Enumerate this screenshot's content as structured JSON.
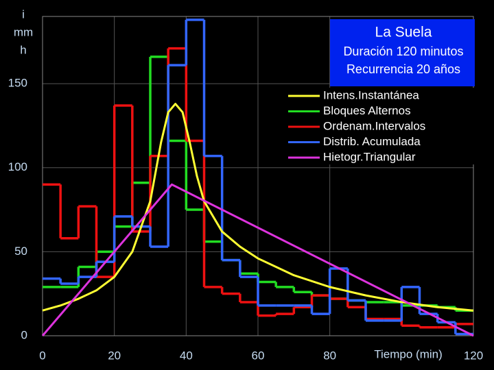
{
  "chart_data": {
    "type": "line",
    "title": "La Suela",
    "subtitle": [
      "Duración 120 minutos",
      "Recurrencia 20 años"
    ],
    "ylabel": [
      "i",
      "mm",
      "h"
    ],
    "xlabel": "Tiempo (min)",
    "xlim": [
      0,
      120
    ],
    "ylim": [
      0,
      190
    ],
    "xticks": [
      0,
      20,
      40,
      60,
      80,
      120
    ],
    "yticks": [
      0,
      50,
      100,
      150
    ],
    "grid": true,
    "legend": "upper right",
    "series": [
      {
        "name": "Intens.Instantánea",
        "color": "#ffff33",
        "x": [
          0,
          5,
          10,
          15,
          20,
          25,
          30,
          33,
          35,
          37,
          39,
          41,
          43,
          45,
          50,
          55,
          60,
          70,
          80,
          90,
          100,
          110,
          120
        ],
        "values": [
          15,
          18,
          22,
          27,
          35,
          50,
          80,
          115,
          133,
          138,
          133,
          115,
          95,
          80,
          62,
          53,
          46,
          36,
          29,
          24,
          20,
          17,
          15
        ]
      },
      {
        "name": "Bloques Alternos",
        "color": "#22dd22",
        "bins": [
          0,
          5,
          10,
          15,
          20,
          25,
          30,
          35,
          40,
          45,
          50,
          55,
          60,
          65,
          70,
          75,
          80,
          85,
          90,
          95,
          100,
          105,
          110,
          115,
          120
        ],
        "values": [
          29,
          29,
          41,
          50,
          65,
          91,
          166,
          116,
          75,
          56,
          45,
          37,
          32,
          29,
          26,
          24,
          22,
          21,
          20,
          20,
          18,
          18,
          17,
          15
        ]
      },
      {
        "name": "Ordenam.Intervalos",
        "color": "#ee1111",
        "bins": [
          0,
          5,
          10,
          15,
          20,
          25,
          30,
          35,
          40,
          45,
          50,
          55,
          60,
          65,
          70,
          75,
          80,
          85,
          90,
          95,
          100,
          105,
          110,
          115,
          120
        ],
        "values": [
          90,
          58,
          77,
          35,
          137,
          62,
          107,
          171,
          116,
          29,
          25,
          20,
          12,
          13,
          17,
          24,
          22,
          17,
          10,
          10,
          6,
          5,
          5,
          7
        ]
      },
      {
        "name": "Distrib. Acumulada",
        "color": "#3366ff",
        "bins": [
          0,
          5,
          10,
          15,
          20,
          25,
          30,
          35,
          40,
          45,
          50,
          55,
          60,
          65,
          70,
          75,
          80,
          85,
          90,
          95,
          100,
          105,
          110,
          115,
          120
        ],
        "values": [
          34,
          31,
          35,
          44,
          71,
          65,
          53,
          161,
          188,
          107,
          45,
          35,
          18,
          18,
          18,
          13,
          40,
          21,
          9,
          9,
          29,
          13,
          8,
          1
        ]
      },
      {
        "name": "Hietogr.Triangular",
        "color": "#dd33dd",
        "x": [
          0,
          36,
          120
        ],
        "values": [
          0,
          90,
          0
        ]
      }
    ]
  }
}
